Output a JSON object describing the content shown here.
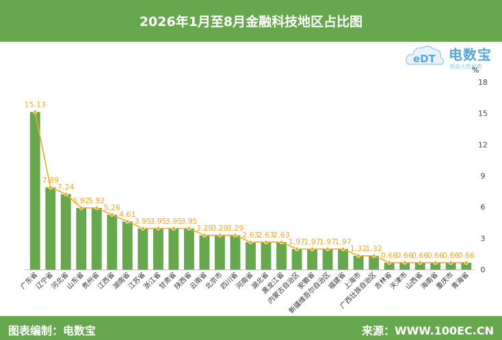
{
  "header": {
    "title": "2026年1月至8月金融科技地区占比图"
  },
  "footer": {
    "left": "图表编制：电数宝",
    "right": "来源：WWW.100EC.CN"
  },
  "logo": {
    "text": "电数宝",
    "sub": "电商大数据库",
    "badge": "eDT"
  },
  "colors": {
    "bar": "#67a74d",
    "line": "#f5a623",
    "header": "#67a74d"
  },
  "chart_data": {
    "type": "bar",
    "unit": "%",
    "categories": [
      "广东省",
      "辽宁省",
      "河北省",
      "山东省",
      "贵州省",
      "江西省",
      "湖南省",
      "江苏省",
      "浙江省",
      "甘肃省",
      "陕西省",
      "云南省",
      "北京市",
      "四川省",
      "河南省",
      "湖北省",
      "黑龙江省",
      "内蒙古自治区",
      "安徽省",
      "新疆维吾尔自治区",
      "福建省",
      "上海市",
      "广西壮族自治区",
      "吉林省",
      "天津市",
      "山西省",
      "海南省",
      "重庆市",
      "青海省"
    ],
    "values": [
      15.13,
      7.89,
      7.24,
      5.92,
      5.92,
      5.26,
      4.61,
      3.95,
      3.95,
      3.95,
      3.95,
      3.29,
      3.29,
      3.29,
      2.63,
      2.63,
      2.63,
      1.97,
      1.97,
      1.97,
      1.97,
      1.32,
      1.32,
      0.66,
      0.66,
      0.66,
      0.66,
      0.66,
      0.66
    ],
    "ylim": [
      0,
      18
    ],
    "yticks": [
      0,
      3,
      6,
      9,
      12,
      15,
      18
    ],
    "ytick_labels": [
      "0",
      "3",
      "6",
      "9",
      "12",
      "15",
      "18"
    ],
    "y_axis_side": "right",
    "grid": false,
    "line_overlay": true
  }
}
